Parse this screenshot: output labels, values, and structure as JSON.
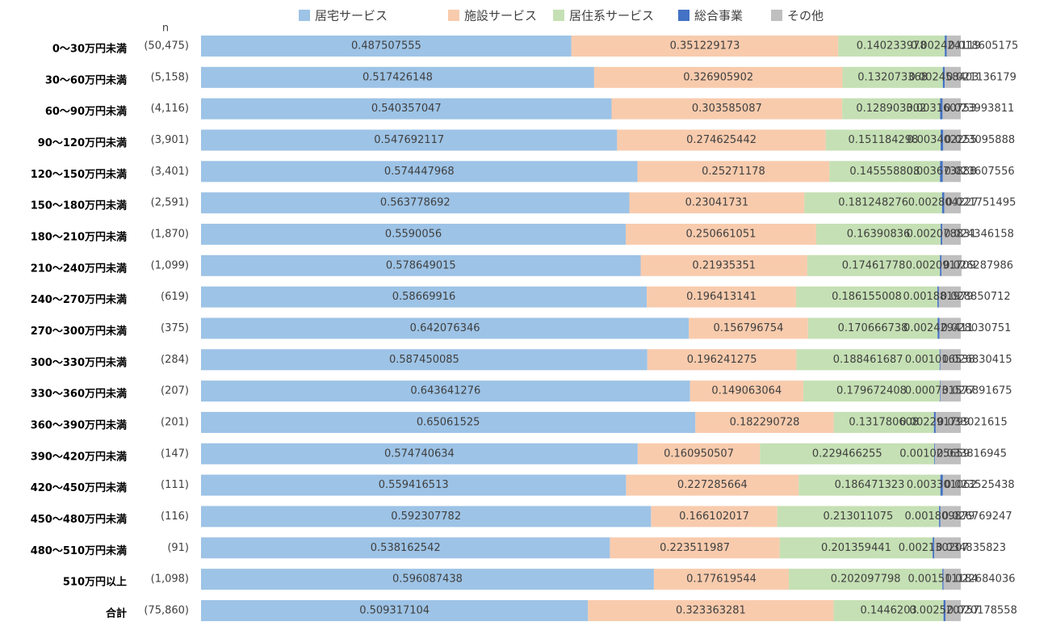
{
  "chart_data": {
    "type": "stacked_bar_horizontal",
    "n_header": "n",
    "categories": [
      "0～30万円未満",
      "30～60万円未満",
      "60～90万円未満",
      "90～120万円未満",
      "120～150万円未満",
      "150～180万円未満",
      "180～210万円未満",
      "210～240万円未満",
      "240～270万円未満",
      "270～300万円未満",
      "300～330万円未満",
      "330～360万円未満",
      "360～390万円未満",
      "390～420万円未満",
      "420～450万円未満",
      "450～480万円未満",
      "480～510万円未満",
      "510万円以上",
      "合計"
    ],
    "n_labels": [
      "(50,475)",
      "(5,158)",
      "(4,116)",
      "(3,901)",
      "(3,401)",
      "(2,591)",
      "(1,870)",
      "(1,099)",
      "(619)",
      "(375)",
      "(284)",
      "(207)",
      "(201)",
      "(147)",
      "(111)",
      "(116)",
      "(91)",
      "(1,098)",
      "(75,860)"
    ],
    "xlim": [
      0,
      1
    ],
    "legend_position": "top",
    "series": [
      {
        "name": "居宅サービス",
        "color": "#9dc3e6",
        "values": [
          0.487507555,
          0.517426148,
          0.540357047,
          0.547692117,
          0.574447968,
          0.563778692,
          0.5590056,
          0.578649015,
          0.58669916,
          0.642076346,
          0.587450085,
          0.643641276,
          0.65061525,
          0.574740634,
          0.559416513,
          0.592307782,
          0.538162542,
          0.596087438,
          0.509317104
        ]
      },
      {
        "name": "施設サービス",
        "color": "#f8cbad",
        "values": [
          0.351229173,
          0.326905902,
          0.303585087,
          0.274625442,
          0.25271178,
          0.23041731,
          0.250661051,
          0.21935351,
          0.196413141,
          0.156796754,
          0.196241275,
          0.149063064,
          0.182290728,
          0.160950507,
          0.227285664,
          0.166102017,
          0.223511987,
          0.177619544,
          0.323363281
        ]
      },
      {
        "name": "居住系サービス",
        "color": "#c5e0b4",
        "values": [
          0.140233978,
          0.132073368,
          0.128903302,
          0.151184298,
          0.145558808,
          0.181248276,
          0.16390836,
          0.17461778,
          0.186155008,
          0.170666738,
          0.188461687,
          0.179672408,
          0.131780608,
          0.229466255,
          0.186471323,
          0.213011075,
          0.201359441,
          0.202097798,
          0.1446203
        ]
      },
      {
        "name": "総合事業",
        "color": "#4472c4",
        "values": [
          0.002424119,
          0.002458403,
          0.003160753,
          0.003402255,
          0.003673888,
          0.002804227,
          0.002078831,
          0.002091709,
          0.001881979,
          0.002429411,
          0.001016538,
          0.000731577,
          0.002291799,
          0.001025659,
          0.003301062,
          0.001809879,
          0.002130207,
          0.001511184,
          0.002520757
        ]
      },
      {
        "name": "その他",
        "color": "#bfbfbf",
        "values": [
          0.018605175,
          0.021136179,
          0.023993811,
          0.023095888,
          0.023607556,
          0.021751495,
          0.024346158,
          0.026287986,
          0.028850712,
          0.028030751,
          0.026830415,
          0.026891675,
          0.033021615,
          0.033816945,
          0.023525438,
          0.026769247,
          0.034835823,
          0.022684036,
          0.020178558
        ]
      }
    ]
  }
}
